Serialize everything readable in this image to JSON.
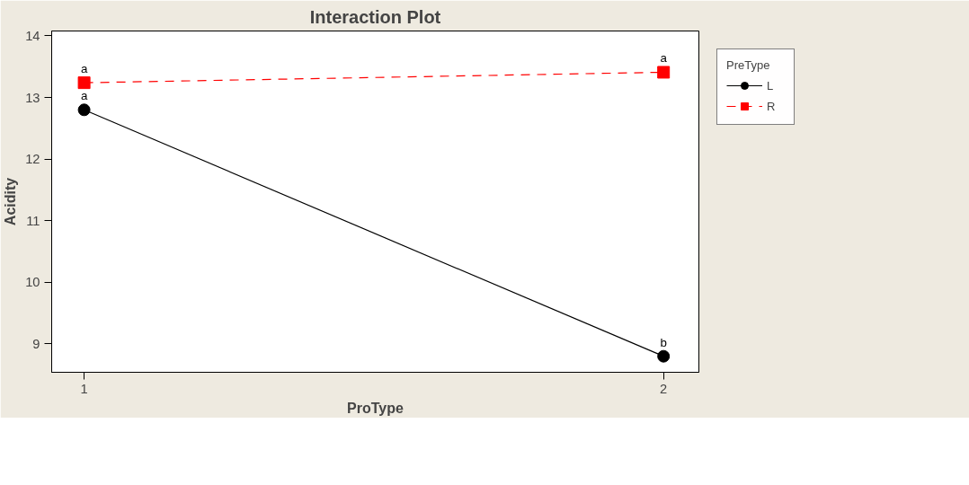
{
  "chart_data": {
    "type": "line",
    "title": "Interaction Plot",
    "xlabel": "ProType",
    "ylabel": "Acidity",
    "legend_title": "PreType",
    "x": [
      1,
      2
    ],
    "xlim": [
      0.944,
      2.061
    ],
    "xticks": [
      1,
      2
    ],
    "ylim": [
      8.54,
      14.08
    ],
    "yticks": [
      9,
      10,
      11,
      12,
      13,
      14
    ],
    "series": [
      {
        "name": "L",
        "color": "#000000",
        "values": [
          12.8,
          8.8
        ],
        "value_labels": [
          "a",
          "b"
        ],
        "marker": "circle",
        "line_style": "solid"
      },
      {
        "name": "R",
        "color": "#ff0000",
        "values": [
          13.24,
          13.41
        ],
        "value_labels": [
          "a",
          "a"
        ],
        "marker": "square",
        "line_style": "dashed"
      }
    ],
    "grid": false,
    "legend": "top right"
  }
}
